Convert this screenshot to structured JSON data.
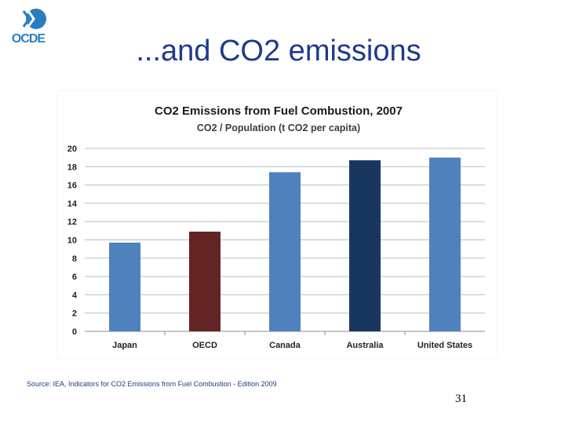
{
  "logo": {
    "text": "OCDE",
    "color": "#2a7ec0"
  },
  "slide": {
    "title": "...and CO2 emissions",
    "page_number": "31"
  },
  "source": "Source: IEA, Indicators for CO2 Emissions from Fuel Combustion - Edition 2009",
  "chart_data": {
    "type": "bar",
    "title": "CO2  Emissions from Fuel Combustion, 2007",
    "subtitle": "CO2 / Population  (t CO2 per capita)",
    "categories": [
      "Japan",
      "OECD",
      "Canada",
      "Australia",
      "United States"
    ],
    "values": [
      9.7,
      10.9,
      17.4,
      18.7,
      19.0
    ],
    "bar_colors": [
      "#4f81bd",
      "#632523",
      "#4f81bd",
      "#17375e",
      "#4f81bd"
    ],
    "xlabel": "",
    "ylabel": "",
    "ylim": [
      0,
      20
    ],
    "yticks": [
      0,
      2,
      4,
      6,
      8,
      10,
      12,
      14,
      16,
      18,
      20
    ],
    "grid": true,
    "legend": "none"
  }
}
